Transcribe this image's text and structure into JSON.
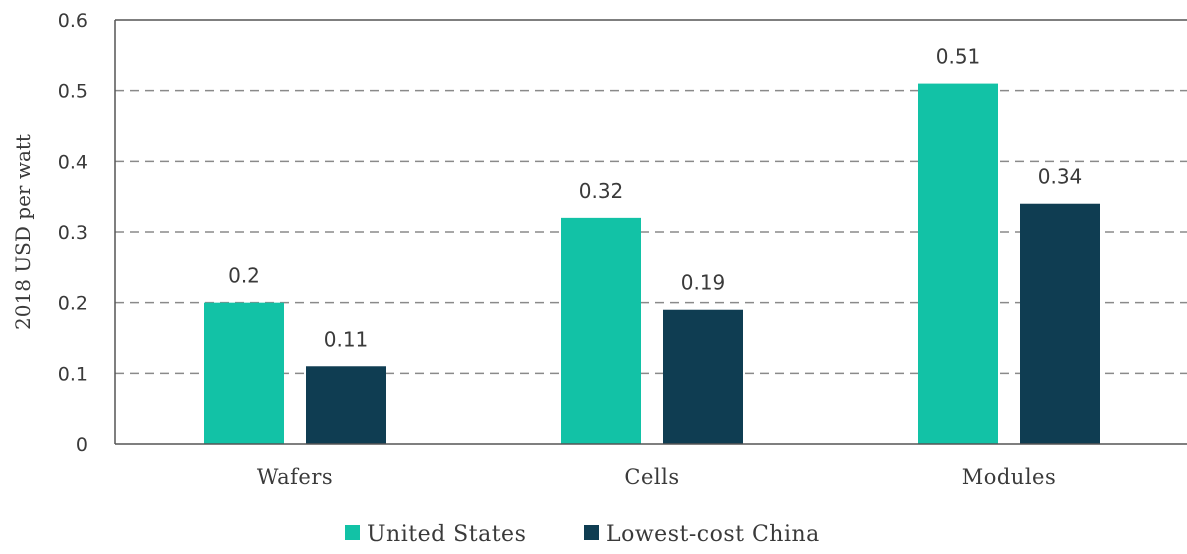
{
  "chart_data": {
    "type": "bar",
    "categories": [
      "Wafers",
      "Cells",
      "Modules"
    ],
    "series": [
      {
        "name": "United States",
        "values": [
          0.2,
          0.32,
          0.51
        ],
        "color": "#12c2a6"
      },
      {
        "name": "Lowest-cost China",
        "values": [
          0.11,
          0.19,
          0.34
        ],
        "color": "#0f3d52"
      }
    ],
    "data_labels": [
      [
        "0.2",
        "0.32",
        "0.51"
      ],
      [
        "0.11",
        "0.19",
        "0.34"
      ]
    ],
    "ylabel": "2018 USD per watt",
    "ylim": [
      0,
      0.6
    ],
    "yticks": [
      "0",
      "0.1",
      "0.2",
      "0.3",
      "0.4",
      "0.5",
      "0.6"
    ],
    "grid": "horizontal dashed",
    "legend_position": "bottom-center"
  }
}
